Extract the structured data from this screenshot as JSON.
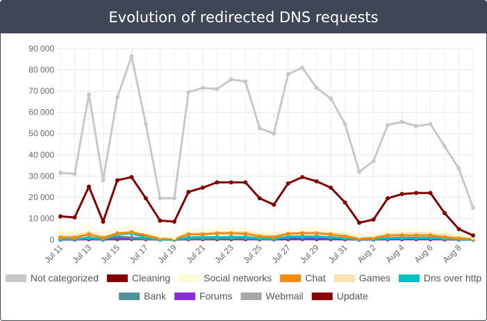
{
  "header": {
    "title": "Evolution of redirected DNS requests"
  },
  "chart_data": {
    "type": "line",
    "title": "Evolution of redirected DNS requests",
    "xlabel": "",
    "ylabel": "",
    "ylim": [
      0,
      90000
    ],
    "yticks": [
      0,
      10000,
      20000,
      30000,
      40000,
      50000,
      60000,
      70000,
      80000,
      90000
    ],
    "ytick_labels": [
      "0",
      "10 000",
      "20 000",
      "30 000",
      "40 000",
      "50 000",
      "60 000",
      "70 000",
      "80 000",
      "90 000"
    ],
    "grid": true,
    "legend_position": "bottom",
    "x": [
      "Jul 11",
      "Jul 12",
      "Jul 13",
      "Jul 14",
      "Jul 15",
      "Jul 16",
      "Jul 17",
      "Jul 18",
      "Jul 19",
      "Jul 20",
      "Jul 21",
      "Jul 22",
      "Jul 23",
      "Jul 24",
      "Jul 25",
      "Jul 26",
      "Jul 27",
      "Jul 28",
      "Jul 29",
      "Jul 30",
      "Jul 31",
      "Aug 1",
      "Aug 2",
      "Aug 3",
      "Aug 4",
      "Aug 5",
      "Aug 6",
      "Aug 7",
      "Aug 8",
      "Aug 9"
    ],
    "xtick_labels": [
      "Jul 11",
      "Jul 13",
      "Jul 15",
      "Jul 17",
      "Jul 19",
      "Jul 21",
      "Jul 23",
      "Jul 25",
      "Jul 27",
      "Jul 29",
      "Jul 31",
      "Aug 2",
      "Aug 4",
      "Aug 6",
      "Aug 8"
    ],
    "series": [
      {
        "name": "Not categorized",
        "color": "#c8c8c8",
        "values": [
          31500,
          31000,
          68500,
          28000,
          67000,
          86500,
          54500,
          19500,
          19500,
          69500,
          71500,
          71000,
          75500,
          74500,
          52500,
          50000,
          78000,
          81000,
          71500,
          66500,
          54500,
          32000,
          37000,
          54000,
          55500,
          53500,
          54500,
          44000,
          33500,
          15000
        ]
      },
      {
        "name": "Cleaning",
        "color": "#800000",
        "values": [
          11000,
          10500,
          25000,
          8500,
          28000,
          29500,
          19500,
          9000,
          8500,
          22500,
          24500,
          27000,
          27000,
          27000,
          19500,
          16500,
          26500,
          29500,
          27500,
          24500,
          17500,
          8000,
          9500,
          19500,
          21500,
          22000,
          22000,
          12500,
          5000,
          2000
        ]
      },
      {
        "name": "Social networks",
        "color": "#fffad5",
        "values": [
          3500,
          3000,
          6500,
          3000,
          5000,
          6000,
          3500,
          1500,
          1000,
          4500,
          4500,
          5000,
          5000,
          5000,
          3500,
          3000,
          4500,
          5000,
          5000,
          4500,
          3500,
          1500,
          2000,
          4000,
          4500,
          4500,
          4500,
          3500,
          2500,
          1000
        ]
      },
      {
        "name": "Chat",
        "color": "#f28c0f",
        "values": [
          1000,
          1000,
          2500,
          800,
          3000,
          3500,
          2000,
          500,
          400,
          2500,
          2500,
          3000,
          3000,
          2800,
          1500,
          1200,
          2800,
          3000,
          3000,
          2500,
          1500,
          500,
          800,
          2000,
          2000,
          2000,
          2000,
          1200,
          600,
          300
        ]
      },
      {
        "name": "Games",
        "color": "#ffe0b3",
        "values": [
          2000,
          1800,
          3500,
          1500,
          3000,
          3500,
          2500,
          1000,
          800,
          3000,
          3000,
          3500,
          3500,
          3500,
          2500,
          2200,
          3000,
          3500,
          3500,
          3000,
          2500,
          1200,
          1500,
          2500,
          3000,
          3000,
          3000,
          2200,
          1500,
          700
        ]
      },
      {
        "name": "Dns over http",
        "color": "#00c1c1",
        "values": [
          300,
          300,
          800,
          200,
          2500,
          3000,
          1000,
          100,
          100,
          1000,
          1200,
          1200,
          1300,
          1300,
          600,
          500,
          1200,
          1300,
          1300,
          1100,
          700,
          200,
          300,
          800,
          900,
          900,
          900,
          500,
          200,
          100
        ]
      },
      {
        "name": "Bank",
        "color": "#4f9396",
        "values": [
          200,
          200,
          1000,
          200,
          1500,
          1000,
          500,
          100,
          100,
          500,
          700,
          700,
          800,
          800,
          400,
          300,
          1500,
          1500,
          1500,
          1200,
          500,
          200,
          200,
          700,
          800,
          800,
          800,
          500,
          200,
          100
        ]
      },
      {
        "name": "Forums",
        "color": "#8b2be0",
        "values": [
          100,
          100,
          300,
          100,
          500,
          600,
          300,
          50,
          50,
          300,
          400,
          400,
          400,
          400,
          200,
          150,
          400,
          400,
          400,
          300,
          200,
          50,
          100,
          300,
          300,
          300,
          300,
          200,
          100,
          50
        ]
      },
      {
        "name": "Webmail",
        "color": "#a8a8a8",
        "values": [
          150,
          150,
          400,
          100,
          600,
          700,
          400,
          80,
          80,
          400,
          500,
          500,
          500,
          500,
          300,
          250,
          500,
          600,
          500,
          450,
          300,
          100,
          150,
          400,
          450,
          450,
          450,
          300,
          150,
          80
        ]
      },
      {
        "name": "Update",
        "color": "#8a0000",
        "values": [
          80,
          80,
          200,
          60,
          300,
          350,
          200,
          40,
          40,
          200,
          250,
          250,
          260,
          260,
          150,
          120,
          260,
          280,
          260,
          230,
          150,
          50,
          80,
          200,
          220,
          220,
          220,
          130,
          60,
          30
        ]
      }
    ]
  }
}
